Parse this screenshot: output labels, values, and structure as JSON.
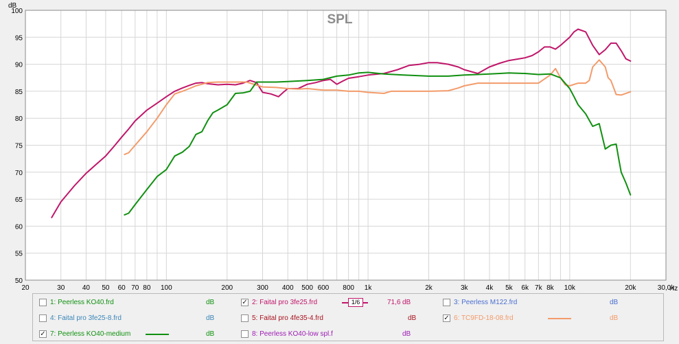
{
  "chart_data": {
    "type": "line",
    "title": "SPL",
    "ylabel": "dB",
    "xunit": "Hz",
    "xscale": "log",
    "xlim": [
      20,
      30000
    ],
    "ylim": [
      50,
      100
    ],
    "grid": true,
    "legend_position": "bottom",
    "y_ticks": [
      "50",
      "55",
      "60",
      "65",
      "70",
      "75",
      "80",
      "85",
      "90",
      "95",
      "100"
    ],
    "x_tick_labels": [
      {
        "v": 20,
        "t": "20"
      },
      {
        "v": 30,
        "t": "30"
      },
      {
        "v": 40,
        "t": "40"
      },
      {
        "v": 50,
        "t": "50"
      },
      {
        "v": 60,
        "t": "60"
      },
      {
        "v": 70,
        "t": "70"
      },
      {
        "v": 80,
        "t": "80"
      },
      {
        "v": 100,
        "t": "100"
      },
      {
        "v": 200,
        "t": "200"
      },
      {
        "v": 300,
        "t": "300"
      },
      {
        "v": 400,
        "t": "400"
      },
      {
        "v": 500,
        "t": "500"
      },
      {
        "v": 600,
        "t": "600"
      },
      {
        "v": 800,
        "t": "800"
      },
      {
        "v": 1000,
        "t": "1k"
      },
      {
        "v": 2000,
        "t": "2k"
      },
      {
        "v": 3000,
        "t": "3k"
      },
      {
        "v": 4000,
        "t": "4k"
      },
      {
        "v": 5000,
        "t": "5k"
      },
      {
        "v": 6000,
        "t": "6k"
      },
      {
        "v": 7000,
        "t": "7k"
      },
      {
        "v": 8000,
        "t": "8k"
      },
      {
        "v": 10000,
        "t": "10k"
      },
      {
        "v": 20000,
        "t": "20k"
      },
      {
        "v": 30000,
        "t": "30,0k"
      }
    ],
    "series": [
      {
        "name": "2: Faital pro 3fe25.frd",
        "color": "#c0166a",
        "x": [
          27,
          30,
          35,
          40,
          45,
          50,
          55,
          60,
          65,
          70,
          80,
          90,
          100,
          110,
          120,
          130,
          140,
          150,
          160,
          180,
          200,
          220,
          240,
          260,
          280,
          300,
          330,
          360,
          380,
          400,
          450,
          500,
          550,
          600,
          650,
          700,
          750,
          800,
          900,
          1000,
          1200,
          1400,
          1600,
          1800,
          2000,
          2200,
          2500,
          2800,
          3000,
          3500,
          4000,
          4500,
          5000,
          6000,
          6500,
          7000,
          7500,
          8000,
          8500,
          9000,
          10000,
          10500,
          11000,
          12000,
          13000,
          14000,
          15000,
          16000,
          17000,
          18000,
          19000,
          20000
        ],
        "y": [
          61.6,
          64.5,
          67.5,
          69.8,
          71.5,
          73,
          74.8,
          76.5,
          78,
          79.5,
          81.5,
          82.8,
          84,
          85,
          85.6,
          86.1,
          86.5,
          86.6,
          86.4,
          86.2,
          86.3,
          86.2,
          86.5,
          87,
          86.6,
          84.8,
          84.5,
          84,
          84.8,
          85.5,
          85.5,
          86.3,
          86.6,
          87,
          87.2,
          86.3,
          86.9,
          87.4,
          87.7,
          88,
          88.3,
          89,
          89.8,
          90,
          90.3,
          90.3,
          90,
          89.5,
          89,
          88.3,
          89.5,
          90.2,
          90.7,
          91.2,
          91.6,
          92.3,
          93.2,
          93.2,
          92.8,
          93.5,
          95,
          96,
          96.5,
          96,
          93.5,
          91.8,
          92.7,
          93.9,
          93.9,
          92.5,
          91,
          90.6
        ]
      },
      {
        "name": "6: TC9FD-18-08.frd",
        "color": "#f39b6a",
        "x": [
          62,
          65,
          70,
          80,
          90,
          100,
          110,
          120,
          130,
          140,
          150,
          160,
          180,
          200,
          250,
          300,
          350,
          400,
          450,
          500,
          600,
          700,
          800,
          900,
          1000,
          1200,
          1300,
          1500,
          2000,
          2500,
          2800,
          3000,
          3500,
          4000,
          5000,
          6000,
          7000,
          8000,
          8500,
          9000,
          9500,
          10000,
          11000,
          11500,
          12000,
          12500,
          13000,
          14000,
          15000,
          15500,
          16000,
          17000,
          18000,
          20000
        ],
        "y": [
          73.3,
          73.6,
          75,
          77.5,
          80,
          82.5,
          84.5,
          85,
          85.5,
          86,
          86.3,
          86.6,
          86.7,
          86.7,
          86.7,
          85.8,
          85.7,
          85.5,
          85.4,
          85.5,
          85.2,
          85.2,
          85,
          85,
          84.8,
          84.6,
          85,
          85,
          85,
          85.1,
          85.6,
          86,
          86.5,
          86.5,
          86.5,
          86.5,
          86.5,
          88,
          89.2,
          87.5,
          86.2,
          86,
          86.5,
          86.5,
          86.5,
          87,
          89.5,
          90.8,
          89.5,
          87.5,
          87,
          84.4,
          84.3,
          84.9
        ]
      },
      {
        "name": "7: Peerless KO40-medium",
        "color": "#109010",
        "x": [
          62,
          65,
          70,
          80,
          90,
          100,
          110,
          120,
          130,
          140,
          150,
          160,
          170,
          180,
          200,
          220,
          240,
          260,
          280,
          300,
          350,
          400,
          500,
          600,
          700,
          800,
          900,
          1000,
          1200,
          1500,
          2000,
          2500,
          3000,
          3500,
          4000,
          4500,
          5000,
          6000,
          7000,
          8000,
          9000,
          10000,
          10500,
          11000,
          12000,
          13000,
          14000,
          15000,
          16000,
          17000,
          17500,
          18000,
          19000,
          20000
        ],
        "y": [
          62.1,
          62.4,
          64,
          66.8,
          69.2,
          70.5,
          73,
          73.7,
          74.8,
          77,
          77.5,
          79.5,
          81,
          81.5,
          82.5,
          84.6,
          84.7,
          85,
          86.7,
          86.7,
          86.7,
          86.8,
          87,
          87.2,
          87.8,
          88,
          88.4,
          88.5,
          88.2,
          88,
          87.8,
          87.8,
          88,
          88.1,
          88.2,
          88.3,
          88.4,
          88.3,
          88.1,
          88.2,
          87.5,
          85.5,
          84,
          82.5,
          80.8,
          78.5,
          79,
          74.3,
          75,
          75.2,
          72.5,
          70,
          68,
          65.8
        ]
      }
    ],
    "legend": [
      {
        "label": "1: Peerless KO40.frd",
        "color": "#109010",
        "checked": false,
        "unit": "dB",
        "value": ""
      },
      {
        "label": "2: Faital pro 3fe25.frd",
        "color": "#c0166a",
        "checked": true,
        "unit": "dB",
        "value": "71,6",
        "smoothing": "1/6"
      },
      {
        "label": "3: Peerless M122.frd",
        "color": "#4a6fd0",
        "checked": false,
        "unit": "dB",
        "value": ""
      },
      {
        "label": "4: Faital pro 3fe25-8.frd",
        "color": "#3c86b8",
        "checked": false,
        "unit": "dB",
        "value": ""
      },
      {
        "label": "5: Faital pro 4fe35-4.frd",
        "color": "#a8121e",
        "checked": false,
        "unit": "dB",
        "value": ""
      },
      {
        "label": "6: TC9FD-18-08.frd",
        "color": "#f39b6a",
        "checked": true,
        "unit": "dB",
        "value": ""
      },
      {
        "label": "7: Peerless KO40-medium",
        "color": "#109010",
        "checked": true,
        "unit": "dB",
        "value": ""
      },
      {
        "label": "8: Peerless KO40-low spl.f",
        "color": "#9c1cb4",
        "checked": false,
        "unit": "dB",
        "value": ""
      }
    ]
  }
}
